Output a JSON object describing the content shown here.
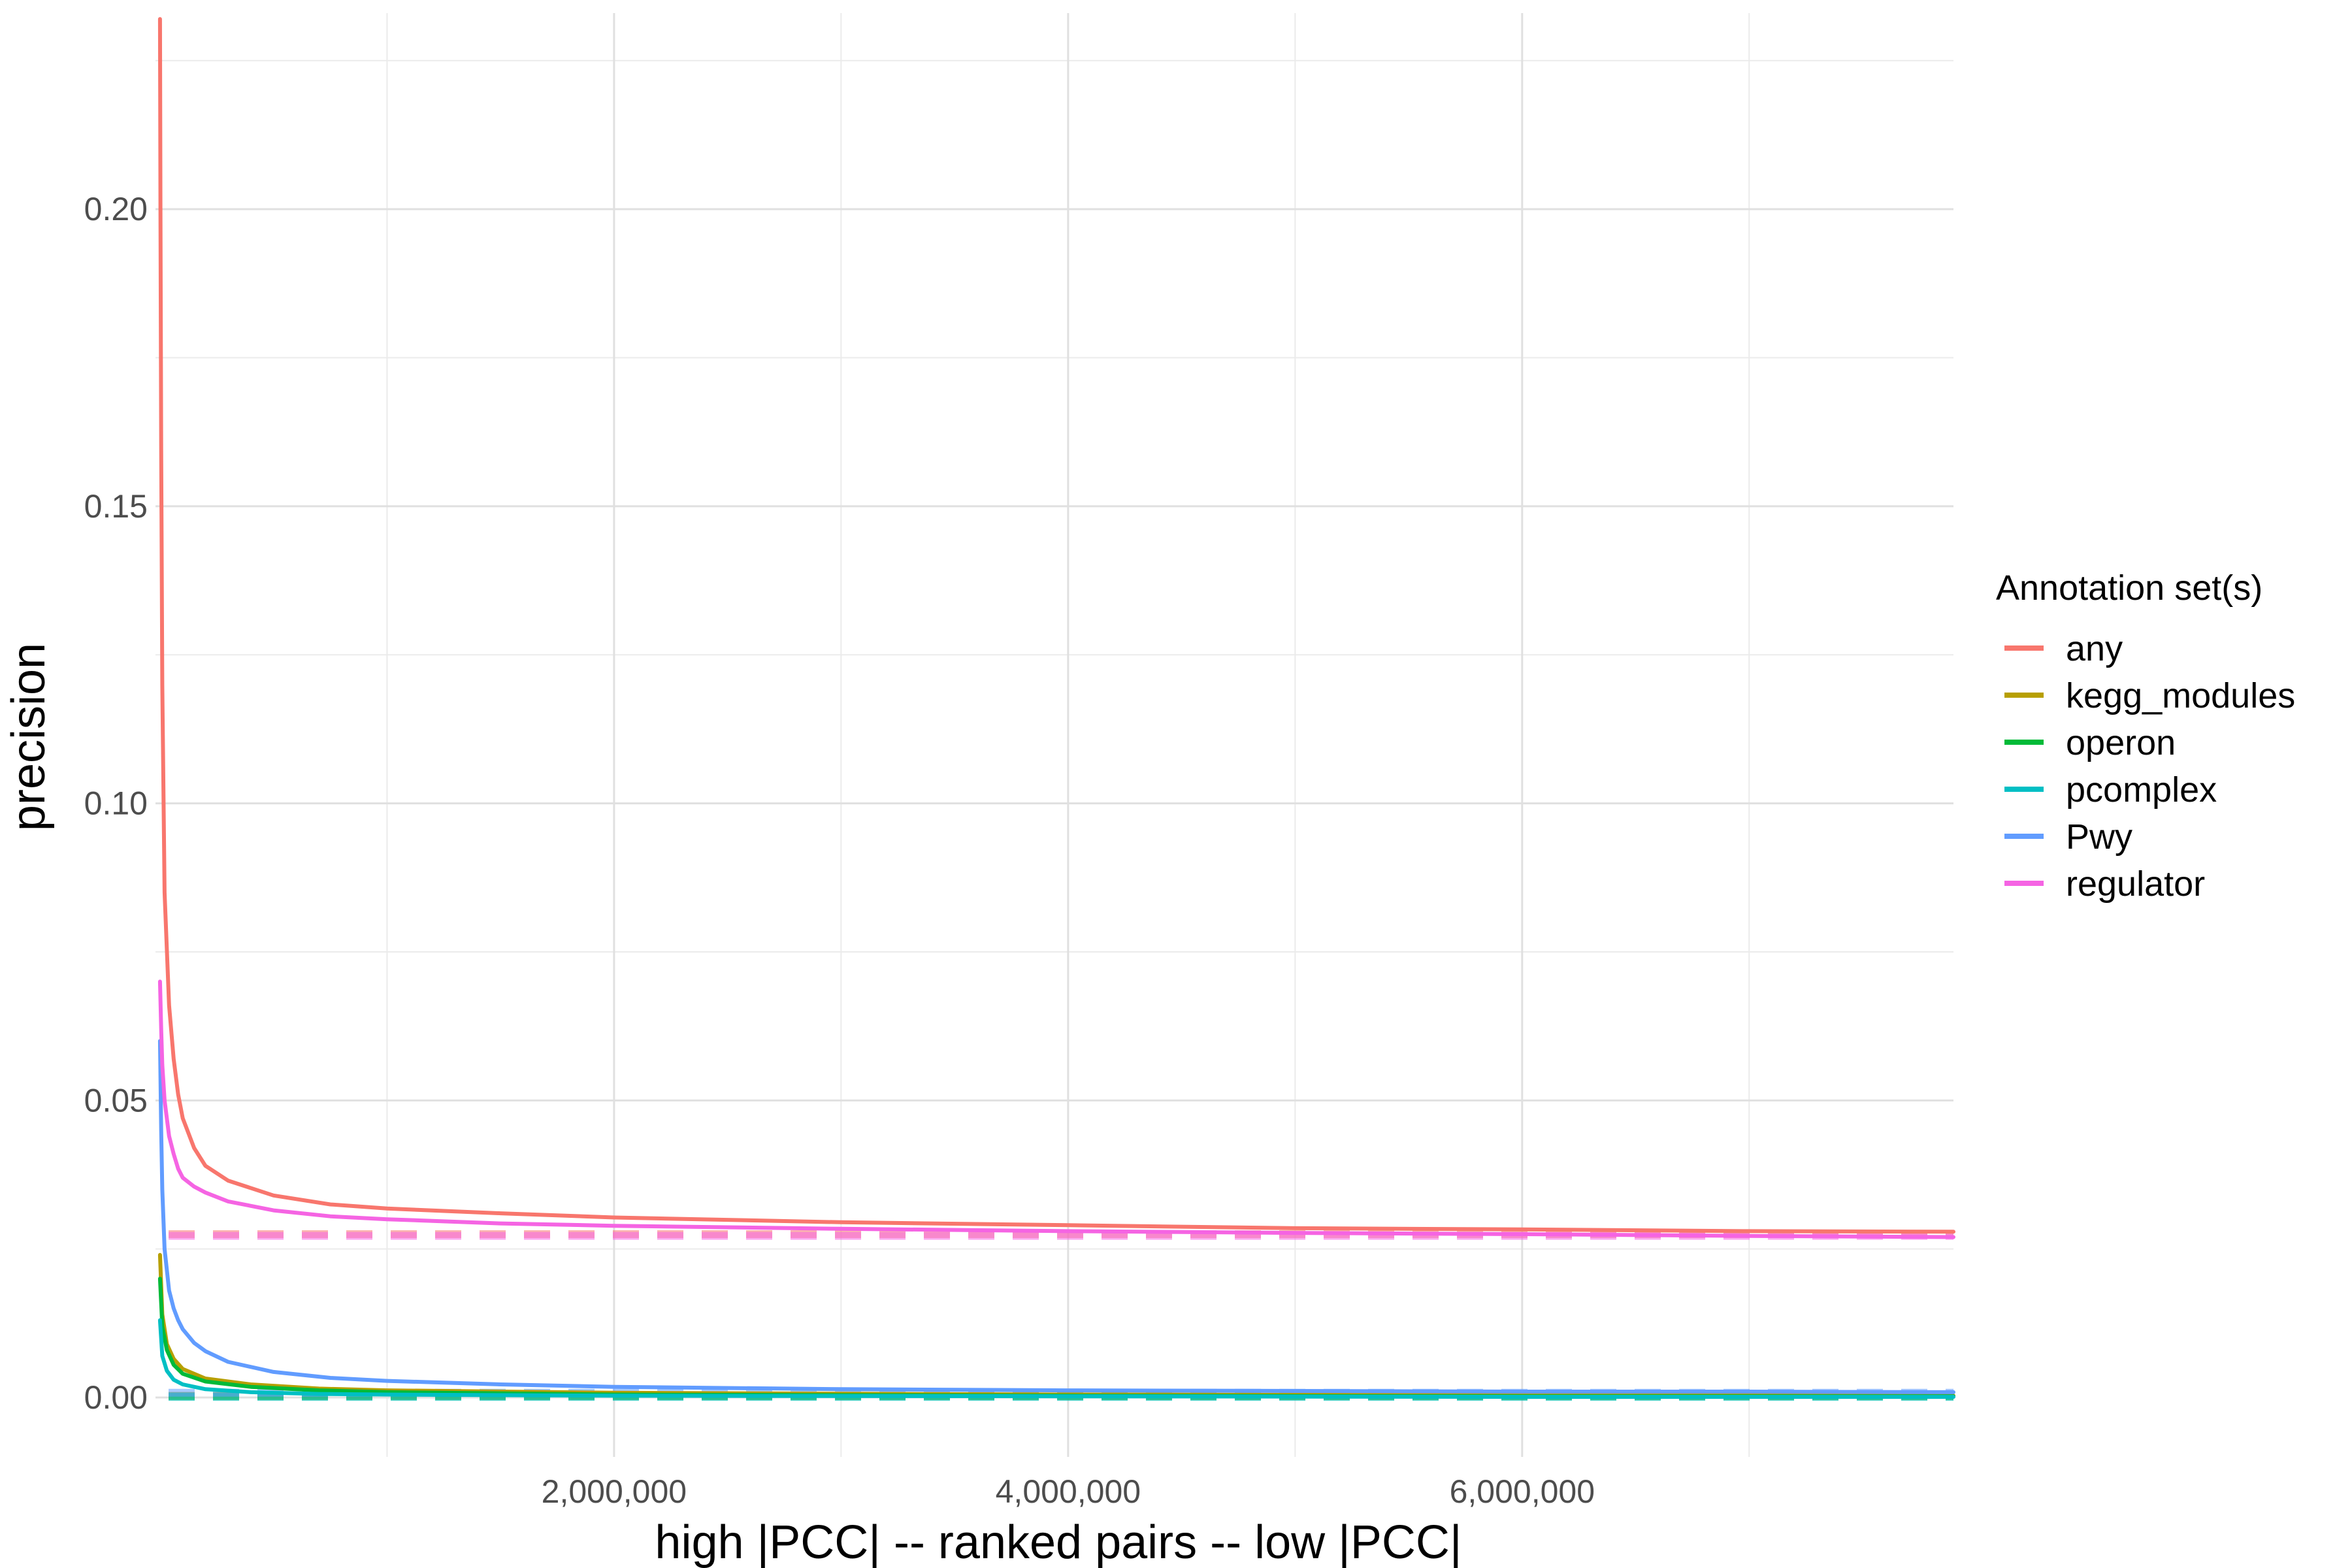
{
  "chart_data": {
    "type": "line",
    "xlabel": "high |PCC| -- ranked pairs -- low |PCC|",
    "ylabel": "precision",
    "xlim": [
      -20000,
      7900000
    ],
    "ylim": [
      -0.01,
      0.233
    ],
    "x_ticks": [
      {
        "value": 2000000,
        "label": "2,000,000"
      },
      {
        "value": 4000000,
        "label": "4,000,000"
      },
      {
        "value": 6000000,
        "label": "6,000,000"
      }
    ],
    "x_minor_grid": [
      1000000,
      3000000,
      5000000,
      7000000
    ],
    "y_ticks": [
      {
        "value": 0.0,
        "label": "0.00"
      },
      {
        "value": 0.05,
        "label": "0.05"
      },
      {
        "value": 0.1,
        "label": "0.10"
      },
      {
        "value": 0.15,
        "label": "0.15"
      },
      {
        "value": 0.2,
        "label": "0.20"
      }
    ],
    "y_minor_grid": [
      0.025,
      0.075,
      0.125,
      0.175,
      0.225
    ],
    "grid": true,
    "legend": {
      "title": "Annotation set(s)",
      "position": "right"
    },
    "series": [
      {
        "name": "any",
        "color": "#F8766D",
        "x": [
          1,
          2000,
          5000,
          10000,
          20000,
          40000,
          60000,
          80000,
          100000,
          150000,
          200000,
          300000,
          500000,
          750000,
          1000000,
          1500000,
          2000000,
          3000000,
          4000000,
          5000000,
          6000000,
          7000000,
          7900000
        ],
        "y": [
          0.232,
          0.2,
          0.16,
          0.12,
          0.085,
          0.066,
          0.057,
          0.051,
          0.047,
          0.042,
          0.039,
          0.0365,
          0.034,
          0.0325,
          0.0318,
          0.031,
          0.0303,
          0.0295,
          0.029,
          0.0285,
          0.0283,
          0.028,
          0.0279
        ]
      },
      {
        "name": "kegg_modules",
        "color": "#B79F00",
        "x": [
          1,
          10000,
          30000,
          60000,
          100000,
          200000,
          400000,
          700000,
          1000000,
          2000000,
          4000000,
          6000000,
          7900000
        ],
        "y": [
          0.024,
          0.014,
          0.009,
          0.0065,
          0.0048,
          0.0032,
          0.0022,
          0.0015,
          0.0012,
          0.0008,
          0.0005,
          0.0004,
          0.0003
        ]
      },
      {
        "name": "operon",
        "color": "#00BA38",
        "x": [
          1,
          10000,
          30000,
          60000,
          100000,
          200000,
          400000,
          700000,
          1000000,
          2000000,
          4000000,
          6000000,
          7900000
        ],
        "y": [
          0.02,
          0.012,
          0.008,
          0.0055,
          0.004,
          0.0027,
          0.0018,
          0.0012,
          0.0009,
          0.0005,
          0.0003,
          0.0002,
          0.0002
        ]
      },
      {
        "name": "pcomplex",
        "color": "#00BFC4",
        "x": [
          1,
          10000,
          30000,
          60000,
          100000,
          200000,
          400000,
          700000,
          1000000,
          2000000,
          4000000,
          6000000,
          7900000
        ],
        "y": [
          0.013,
          0.007,
          0.0045,
          0.003,
          0.0022,
          0.0014,
          0.0009,
          0.0006,
          0.0005,
          0.0003,
          0.0002,
          0.0001,
          0.0001
        ]
      },
      {
        "name": "Pwy",
        "color": "#619CFF",
        "x": [
          1,
          5000,
          10000,
          20000,
          40000,
          60000,
          80000,
          100000,
          150000,
          200000,
          300000,
          500000,
          750000,
          1000000,
          1500000,
          2000000,
          3000000,
          4000000,
          5000000,
          6000000,
          7000000,
          7900000
        ],
        "y": [
          0.06,
          0.045,
          0.035,
          0.025,
          0.018,
          0.015,
          0.013,
          0.0115,
          0.0092,
          0.0078,
          0.006,
          0.0043,
          0.0033,
          0.0028,
          0.0022,
          0.0018,
          0.0014,
          0.0012,
          0.0011,
          0.001,
          0.001,
          0.0009
        ]
      },
      {
        "name": "regulator",
        "color": "#F564E3",
        "x": [
          1,
          5000,
          10000,
          20000,
          40000,
          60000,
          80000,
          100000,
          150000,
          200000,
          300000,
          500000,
          750000,
          1000000,
          1500000,
          2000000,
          3000000,
          4000000,
          5000000,
          6000000,
          7000000,
          7900000
        ],
        "y": [
          0.07,
          0.062,
          0.056,
          0.05,
          0.044,
          0.041,
          0.0385,
          0.037,
          0.0355,
          0.0345,
          0.033,
          0.0315,
          0.0305,
          0.03,
          0.0293,
          0.0289,
          0.0284,
          0.028,
          0.0277,
          0.0275,
          0.0272,
          0.027
        ]
      }
    ],
    "baselines": [
      {
        "name": "any",
        "color": "#F8766D",
        "y": 0.0275
      },
      {
        "name": "regulator",
        "color": "#F564E3",
        "y": 0.0272
      },
      {
        "name": "kegg_modules",
        "color": "#B79F00",
        "y": 0.0003
      },
      {
        "name": "operon",
        "color": "#00BA38",
        "y": 0.0002
      },
      {
        "name": "pcomplex",
        "color": "#00BFC4",
        "y": 0.0001
      },
      {
        "name": "Pwy",
        "color": "#619CFF",
        "y": 0.0008
      }
    ]
  }
}
